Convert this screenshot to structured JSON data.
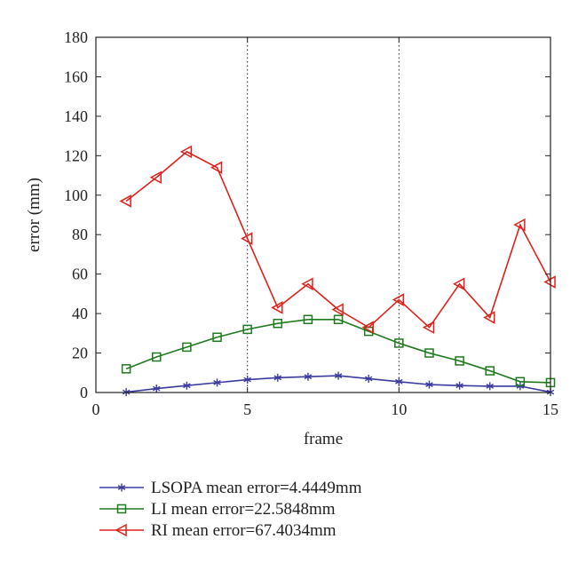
{
  "chart_data": {
    "type": "line",
    "xlabel": "frame",
    "ylabel": "error (mm)",
    "xlim": [
      0,
      15
    ],
    "ylim": [
      0,
      180
    ],
    "xticks": [
      0,
      5,
      10,
      15
    ],
    "yticks": [
      0,
      20,
      40,
      60,
      80,
      100,
      120,
      140,
      160,
      180
    ],
    "grid": "vertical dotted at x=5,10",
    "legend_position": "bottom-left below plot",
    "x": [
      1,
      2,
      3,
      4,
      5,
      6,
      7,
      8,
      9,
      10,
      11,
      12,
      13,
      14,
      15
    ],
    "series": [
      {
        "name": "LSOPA mean error=4.4449mm",
        "color": "#3b3ba0",
        "marker": "asterisk",
        "values": [
          0.2,
          2,
          3.5,
          5,
          6.5,
          7.5,
          8,
          8.5,
          7,
          5.5,
          4,
          3.5,
          3.2,
          3.2,
          0.2
        ]
      },
      {
        "name": "LI mean error=22.5848mm",
        "color": "#1f7a1f",
        "marker": "square",
        "values": [
          12,
          18,
          23,
          28,
          32,
          35,
          37,
          37,
          31,
          25,
          20,
          16,
          11,
          5.5,
          5
        ]
      },
      {
        "name": "RI mean error=67.4034mm",
        "color": "#e0201b",
        "marker": "triangle-left",
        "values": [
          97,
          109,
          122,
          114,
          78,
          43,
          55,
          42,
          33,
          47,
          33,
          55,
          38,
          85,
          56
        ]
      }
    ]
  }
}
